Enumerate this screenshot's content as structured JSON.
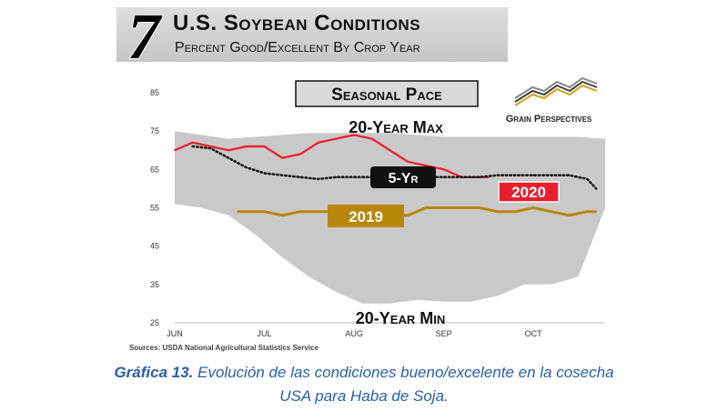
{
  "header": {
    "number": "7",
    "title": "U.S. Soybean Conditions",
    "subtitle": "Percent Good/Excellent By Crop Year"
  },
  "caption": {
    "label": "Gráfica 13.",
    "text_line1": "Evolución de las condiciones bueno/excelente en la cosecha",
    "text_line2": "USA para Haba de Soja."
  },
  "colors": {
    "band": "#c9c9c9",
    "max_line": "#f0192b",
    "five_yr": "#111111",
    "y2019": "#b8860b",
    "y2020_label": "#e8202e"
  },
  "chart_data": {
    "type": "line",
    "title": "Seasonal Pace",
    "brand": "Grain Perspectives",
    "source": "Sources: USDA National Agricultural Statistics Service",
    "ylim": [
      25,
      85
    ],
    "yticks": [
      25,
      35,
      45,
      55,
      65,
      75,
      85
    ],
    "x_ticks": [
      "Jun",
      "Jul",
      "Aug",
      "Sep",
      "Oct"
    ],
    "x_tick_weeks": [
      0,
      10,
      20,
      30,
      40
    ],
    "xlim": [
      0,
      48
    ],
    "annotations": [
      "20-Year Max",
      "20-Year Min"
    ],
    "band": {
      "weeks": [
        0,
        3,
        6,
        9,
        12,
        15,
        18,
        21,
        24,
        27,
        30,
        33,
        36,
        39,
        42,
        45,
        48
      ],
      "upper": [
        75,
        74,
        73,
        73.5,
        74,
        74.5,
        74.5,
        74.5,
        74.5,
        74,
        73.5,
        73.5,
        73.5,
        73.5,
        73.5,
        73.5,
        73
      ],
      "lower": [
        56,
        55,
        53,
        48,
        42,
        37,
        33,
        30,
        30,
        31,
        30.5,
        30.5,
        32,
        35,
        35,
        37,
        55
      ]
    },
    "series": [
      {
        "name": "2020",
        "weeks": [
          0,
          2,
          4,
          6,
          8,
          10,
          12,
          14,
          16,
          18,
          20,
          22,
          24,
          26,
          28,
          30,
          32,
          35
        ],
        "values": [
          70,
          72,
          71,
          70,
          71,
          71,
          68,
          69,
          72,
          73,
          74,
          73,
          70,
          67,
          66,
          65,
          63,
          63
        ]
      },
      {
        "name": "5-Yr",
        "weeks": [
          2,
          4,
          6,
          8,
          10,
          12,
          14,
          16,
          18,
          20,
          22,
          24,
          26,
          28,
          30,
          32,
          34,
          36,
          38,
          40,
          42,
          44,
          46,
          47
        ],
        "values": [
          71,
          70.5,
          68,
          65.5,
          64,
          63.5,
          63,
          62.5,
          63,
          63,
          63,
          63,
          63,
          63,
          63,
          63,
          63,
          63.5,
          63.5,
          63.5,
          63.5,
          63.5,
          62.5,
          60
        ]
      },
      {
        "name": "2019",
        "weeks": [
          7,
          10,
          12,
          14,
          16,
          18,
          20,
          22,
          24,
          26,
          28,
          30,
          32,
          34,
          36,
          38,
          40,
          42,
          44,
          46,
          47
        ],
        "values": [
          54,
          54,
          53,
          54,
          54,
          54,
          54,
          54,
          53,
          53,
          55,
          55,
          55,
          55,
          54,
          54,
          55,
          54,
          53,
          54,
          54
        ]
      }
    ]
  }
}
